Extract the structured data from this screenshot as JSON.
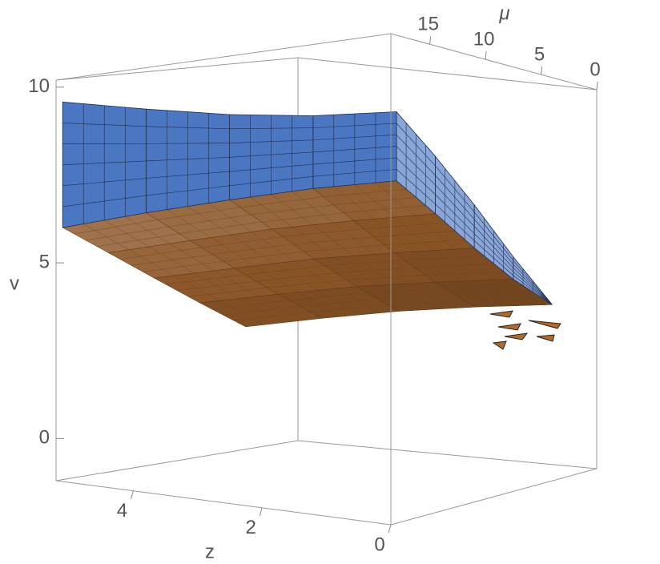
{
  "chart_data": {
    "type": "surface3d",
    "x_label": "z",
    "y_label": "μ",
    "z_label": "v",
    "xlim": [
      0,
      5.2
    ],
    "ylim": [
      0,
      18.5
    ],
    "zlim": [
      -1.2,
      10.2
    ],
    "xticks": [
      0,
      2,
      4
    ],
    "yticks": [
      0,
      5,
      10,
      15
    ],
    "zticks": [
      0,
      5,
      10
    ],
    "x": [
      0,
      1.3,
      2.6,
      3.9,
      5.2
    ],
    "y": [
      18,
      14.5,
      11,
      7.5,
      4
    ],
    "surfaces": [
      {
        "color": "#4a76c2",
        "values": [
          [
            8.41,
            8.5,
            8.73,
            9.1,
            9.56
          ],
          [
            7.5,
            7.59,
            7.82,
            8.19,
            8.65
          ],
          [
            6.4,
            6.49,
            6.72,
            7.09,
            7.55
          ],
          [
            5.1,
            5.19,
            5.42,
            5.79,
            6.25
          ],
          [
            3.78,
            3.87,
            4.1,
            4.47,
            4.93
          ]
        ]
      },
      {
        "color": "#8a5426",
        "values": [
          [
            6.8,
            6.72,
            6.54,
            6.3,
            5.98
          ],
          [
            6.1,
            5.95,
            5.75,
            5.45,
            5.1
          ],
          [
            5.3,
            5.12,
            4.9,
            4.57,
            4.2
          ],
          [
            4.5,
            4.3,
            4.05,
            3.7,
            3.3
          ],
          [
            3.78,
            3.54,
            3.24,
            2.85,
            2.41
          ]
        ]
      }
    ]
  }
}
